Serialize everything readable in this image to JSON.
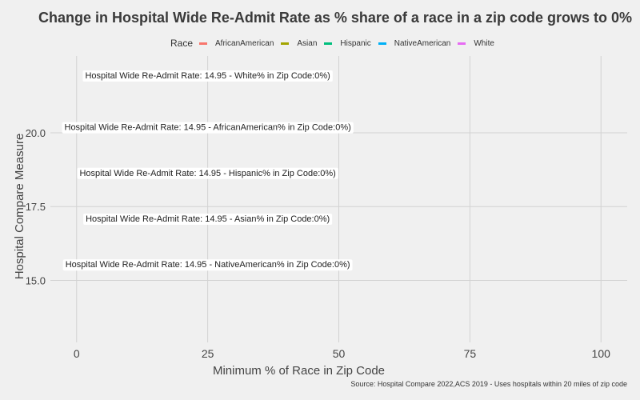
{
  "chart_data": {
    "type": "scatter",
    "title": "Change in Hospital Wide Re-Admit Rate as % share of a race in a zip code grows to 0%",
    "xlabel": "Minimum % of Race in Zip Code",
    "ylabel": "Hospital Compare Measure",
    "source": "Source: Hospital Compare 2022,ACS 2019 - Uses hospitals within 20 miles of zip code",
    "xlim": [
      -5,
      105
    ],
    "ylim": [
      12.9,
      22.6
    ],
    "x_ticks": [
      0,
      25,
      50,
      75,
      100
    ],
    "x_tick_labels": [
      "0",
      "25",
      "50",
      "75",
      "100"
    ],
    "y_ticks": [
      15.0,
      17.5,
      20.0
    ],
    "y_tick_labels": [
      "15.0",
      "17.5",
      "20.0"
    ],
    "grid": true,
    "legend_title": "Race",
    "legend_position": "top",
    "series": [
      {
        "name": "AfricanAmerican",
        "color": "#f8766d"
      },
      {
        "name": "Asian",
        "color": "#a3a500"
      },
      {
        "name": "Hispanic",
        "color": "#00bf7d"
      },
      {
        "name": "NativeAmerican",
        "color": "#00b0f6"
      },
      {
        "name": "White",
        "color": "#e76bf3"
      }
    ],
    "annotations": [
      {
        "x": 25,
        "y": 21.95,
        "text": "Hospital Wide Re-Admit Rate: 14.95 - White% in Zip Code:0%)"
      },
      {
        "x": 25,
        "y": 20.2,
        "text": "Hospital Wide Re-Admit Rate: 14.95 - AfricanAmerican% in Zip Code:0%)"
      },
      {
        "x": 25,
        "y": 18.65,
        "text": "Hospital Wide Re-Admit Rate: 14.95 - Hispanic% in Zip Code:0%)"
      },
      {
        "x": 25,
        "y": 17.1,
        "text": "Hospital Wide Re-Admit Rate: 14.95 - Asian% in Zip Code:0%)"
      },
      {
        "x": 25,
        "y": 15.55,
        "text": "Hospital Wide Re-Admit Rate: 14.95 - NativeAmerican% in Zip Code:0%)"
      }
    ]
  }
}
